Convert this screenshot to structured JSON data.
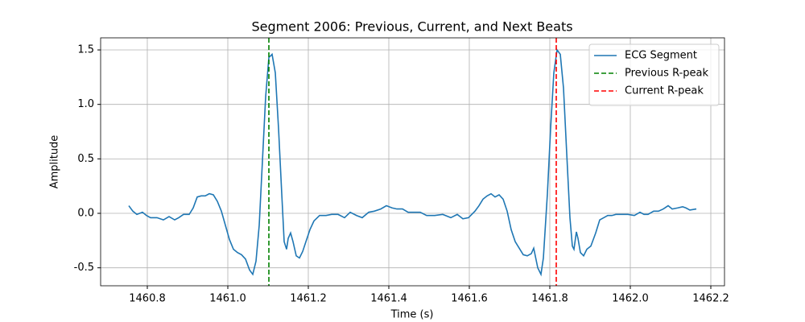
{
  "chart_data": {
    "type": "line",
    "title": "Segment 2006: Previous, Current, and Next Beats",
    "xlabel": "Time (s)",
    "ylabel": "Amplitude",
    "x": [
      1460.754,
      1460.764,
      1460.774,
      1460.788,
      1460.798,
      1460.808,
      1460.824,
      1460.84,
      1460.854,
      1460.868,
      1460.878,
      1460.89,
      1460.904,
      1460.914,
      1460.924,
      1460.934,
      1460.944,
      1460.954,
      1460.964,
      1460.974,
      1460.984,
      1460.994,
      1461.004,
      1461.014,
      1461.024,
      1461.034,
      1461.044,
      1461.054,
      1461.062,
      1461.07,
      1461.078,
      1461.086,
      1461.094,
      1461.102,
      1461.11,
      1461.118,
      1461.126,
      1461.134,
      1461.14,
      1461.146,
      1461.15,
      1461.156,
      1461.162,
      1461.17,
      1461.178,
      1461.186,
      1461.194,
      1461.204,
      1461.214,
      1461.228,
      1461.244,
      1461.258,
      1461.274,
      1461.29,
      1461.304,
      1461.32,
      1461.334,
      1461.35,
      1461.364,
      1461.38,
      1461.394,
      1461.408,
      1461.42,
      1461.434,
      1461.448,
      1461.464,
      1461.478,
      1461.494,
      1461.514,
      1461.534,
      1461.554,
      1461.57,
      1461.584,
      1461.598,
      1461.614,
      1461.624,
      1461.634,
      1461.644,
      1461.654,
      1461.664,
      1461.674,
      1461.684,
      1461.694,
      1461.704,
      1461.714,
      1461.724,
      1461.734,
      1461.744,
      1461.754,
      1461.76,
      1461.77,
      1461.778,
      1461.784,
      1461.794,
      1461.802,
      1461.81,
      1461.818,
      1461.826,
      1461.834,
      1461.842,
      1461.85,
      1461.856,
      1461.86,
      1461.866,
      1461.87,
      1461.876,
      1461.884,
      1461.892,
      1461.902,
      1461.914,
      1461.924,
      1461.934,
      1461.944,
      1461.954,
      1461.964,
      1461.978,
      1461.994,
      1462.01,
      1462.024,
      1462.034,
      1462.044,
      1462.058,
      1462.07,
      1462.082,
      1462.094,
      1462.104,
      1462.118,
      1462.13,
      1462.138,
      1462.148,
      1462.164
    ],
    "series": [
      {
        "name": "ECG Segment",
        "color": "#1f77b4",
        "values": [
          0.07,
          0.02,
          -0.01,
          0.01,
          -0.02,
          -0.04,
          -0.04,
          -0.06,
          -0.03,
          -0.06,
          -0.04,
          -0.01,
          -0.01,
          0.05,
          0.15,
          0.16,
          0.16,
          0.18,
          0.17,
          0.11,
          0.02,
          -0.11,
          -0.24,
          -0.33,
          -0.36,
          -0.38,
          -0.42,
          -0.52,
          -0.56,
          -0.44,
          -0.11,
          0.48,
          1.07,
          1.43,
          1.46,
          1.29,
          0.78,
          0.18,
          -0.26,
          -0.33,
          -0.23,
          -0.18,
          -0.26,
          -0.39,
          -0.41,
          -0.35,
          -0.26,
          -0.15,
          -0.07,
          -0.02,
          -0.02,
          -0.01,
          -0.01,
          -0.04,
          0.01,
          -0.02,
          -0.04,
          0.01,
          0.02,
          0.04,
          0.07,
          0.05,
          0.04,
          0.04,
          0.01,
          0.01,
          0.01,
          -0.02,
          -0.02,
          -0.01,
          -0.04,
          -0.01,
          -0.05,
          -0.04,
          0.02,
          0.07,
          0.13,
          0.16,
          0.18,
          0.15,
          0.17,
          0.13,
          0.02,
          -0.15,
          -0.26,
          -0.32,
          -0.38,
          -0.39,
          -0.37,
          -0.32,
          -0.5,
          -0.56,
          -0.41,
          0.18,
          0.78,
          1.29,
          1.5,
          1.46,
          1.15,
          0.55,
          -0.04,
          -0.3,
          -0.33,
          -0.17,
          -0.23,
          -0.36,
          -0.39,
          -0.33,
          -0.3,
          -0.18,
          -0.06,
          -0.04,
          -0.02,
          -0.02,
          -0.01,
          -0.01,
          -0.01,
          -0.02,
          0.01,
          -0.01,
          -0.01,
          0.02,
          0.02,
          0.04,
          0.07,
          0.04,
          0.05,
          0.06,
          0.05,
          0.03,
          0.04
        ]
      }
    ],
    "vlines": [
      {
        "name": "Previous R-peak",
        "x": 1461.102,
        "color": "#008000",
        "style": "dashed"
      },
      {
        "name": "Current R-peak",
        "x": 1461.816,
        "color": "#ff0000",
        "style": "dashed"
      }
    ],
    "xlim": [
      1460.684,
      1462.234
    ],
    "xticks": [
      1460.8,
      {
        "value": 1461.0,
        "label": "1461.0"
      },
      1461.2,
      1461.4,
      1461.6,
      1461.8,
      {
        "value": 1462.0,
        "label": "1462.0"
      },
      1462.2
    ],
    "ylim": [
      -0.665,
      1.611
    ],
    "yticks": [
      -0.5,
      {
        "value": 0,
        "label": "0.0"
      },
      0.5,
      {
        "value": 1,
        "label": "1.0"
      },
      1.5
    ],
    "grid": true,
    "legend": "upper right"
  }
}
